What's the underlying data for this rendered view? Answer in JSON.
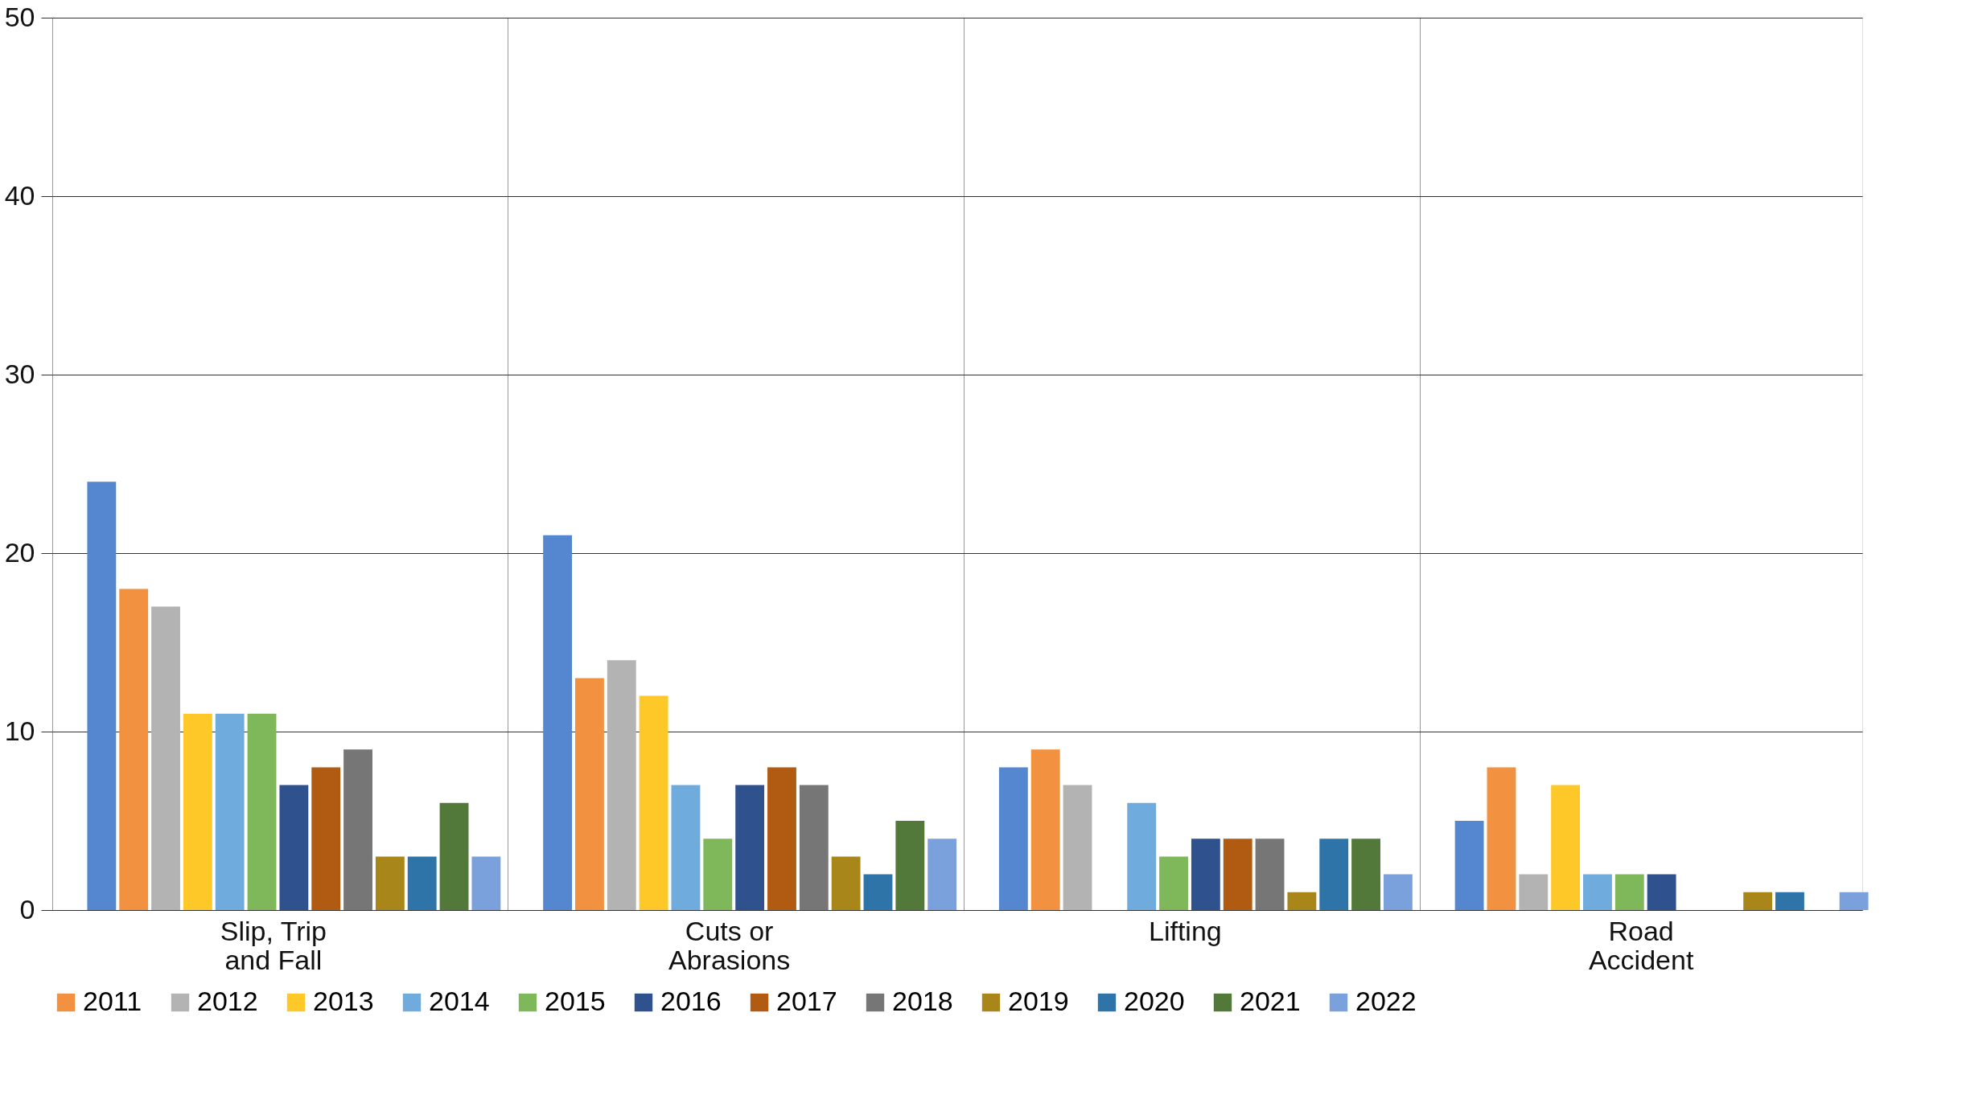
{
  "chart_data": {
    "type": "bar",
    "categories": [
      "Slip, Trip and Fall",
      "Cuts or Abrasions",
      "Lifting",
      "Road Accident"
    ],
    "series": [
      {
        "color": "#5586d0",
        "values": [
          24,
          21,
          8,
          5
        ]
      },
      {
        "name": "2011",
        "color": "#f29140",
        "values": [
          18,
          13,
          9,
          8
        ]
      },
      {
        "name": "2012",
        "color": "#b3b3b3",
        "values": [
          17,
          14,
          7,
          2
        ]
      },
      {
        "name": "2013",
        "color": "#fec828",
        "values": [
          11,
          12,
          0,
          7
        ]
      },
      {
        "name": "2014",
        "color": "#6fabdd",
        "values": [
          11,
          7,
          6,
          2
        ]
      },
      {
        "name": "2015",
        "color": "#7fb85a",
        "values": [
          11,
          4,
          3,
          2
        ]
      },
      {
        "name": "2016",
        "color": "#2f528f",
        "values": [
          7,
          7,
          4,
          2
        ]
      },
      {
        "name": "2017",
        "color": "#b05a12",
        "values": [
          8,
          8,
          4,
          0
        ]
      },
      {
        "name": "2018",
        "color": "#767676",
        "values": [
          9,
          7,
          4,
          0
        ]
      },
      {
        "name": "2019",
        "color": "#a8861a",
        "values": [
          3,
          3,
          1,
          1
        ]
      },
      {
        "name": "2020",
        "color": "#2e74a8",
        "values": [
          3,
          2,
          4,
          1
        ]
      },
      {
        "name": "2021",
        "color": "#53793a",
        "values": [
          6,
          5,
          4,
          0
        ]
      },
      {
        "name": "2022",
        "color": "#7ba1dc",
        "values": [
          3,
          4,
          2,
          1
        ]
      }
    ],
    "ylim": [
      0,
      50
    ],
    "yticks": [
      0,
      10,
      20,
      30,
      40,
      50
    ],
    "grid": true,
    "legend": "bottom"
  }
}
